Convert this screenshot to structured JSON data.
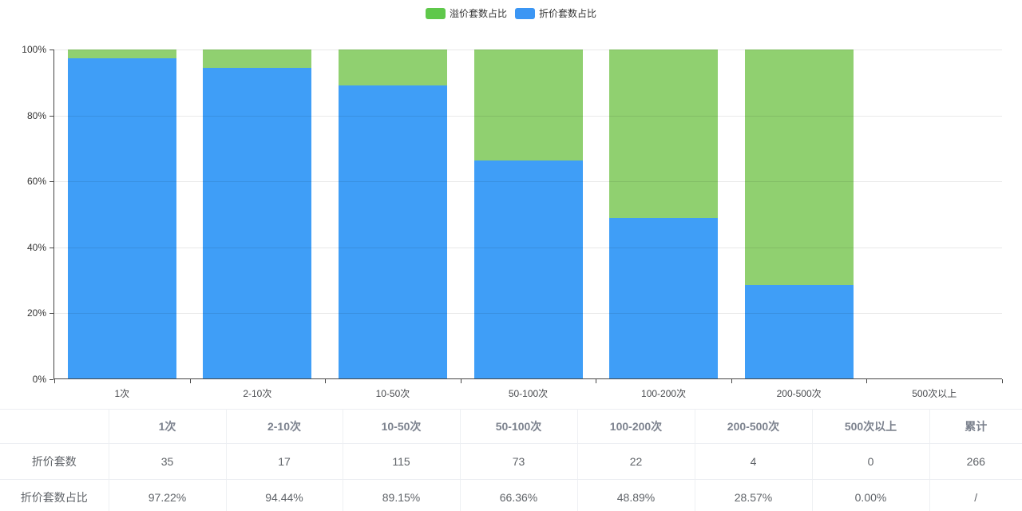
{
  "legend": {
    "items": [
      {
        "key": "premium",
        "label": "溢价套数占比",
        "color": "#5fc84b"
      },
      {
        "key": "discount",
        "label": "折价套数占比",
        "color": "#3b96f4"
      }
    ]
  },
  "chart_data": {
    "type": "bar",
    "stacked": true,
    "percent_stacked": true,
    "title": "",
    "xlabel": "",
    "ylabel": "",
    "categories": [
      "1次",
      "2-10次",
      "10-50次",
      "50-100次",
      "100-200次",
      "200-500次",
      "500次以上"
    ],
    "series": [
      {
        "name": "折价套数占比",
        "key": "discount",
        "color": "#3f9ef7",
        "values": [
          97.22,
          94.44,
          89.15,
          66.36,
          48.89,
          28.57,
          null
        ]
      },
      {
        "name": "溢价套数占比",
        "key": "premium",
        "color": "#90d070",
        "values": [
          2.78,
          5.56,
          10.85,
          33.64,
          51.11,
          71.43,
          null
        ]
      }
    ],
    "ylim": [
      0,
      100
    ],
    "y_ticks": [
      "0%",
      "20%",
      "40%",
      "60%",
      "80%",
      "100%"
    ],
    "grid": true,
    "legend_position": "top-center"
  },
  "table": {
    "headers": [
      "",
      "1次",
      "2-10次",
      "10-50次",
      "50-100次",
      "100-200次",
      "200-500次",
      "500次以上",
      "累计"
    ],
    "rows": [
      {
        "label": "折价套数",
        "values": [
          "35",
          "17",
          "115",
          "73",
          "22",
          "4",
          "0",
          "266"
        ]
      },
      {
        "label": "折价套数占比",
        "values": [
          "97.22%",
          "94.44%",
          "89.15%",
          "66.36%",
          "48.89%",
          "28.57%",
          "0.00%",
          "/"
        ]
      }
    ]
  }
}
